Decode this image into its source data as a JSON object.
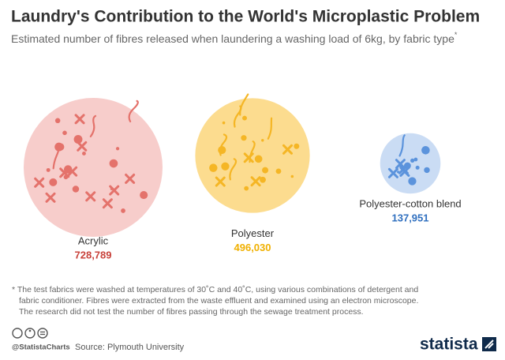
{
  "chart_data": {
    "type": "bubble",
    "title": "Laundry's Contribution to the World's Microplastic Problem",
    "subtitle": "Estimated number of fibres released when laundering a washing load of 6kg, by fabric type",
    "subtitle_mark": "*",
    "categories": [
      "Acrylic",
      "Polyester",
      "Polyester-cotton blend"
    ],
    "values": [
      728789,
      496030,
      137951
    ],
    "value_labels": [
      "728,789",
      "496,030",
      "137,951"
    ],
    "colors": [
      "#f7cdcb",
      "#fcdc8f",
      "#cadcf4"
    ],
    "accent_colors": [
      "#c8413a",
      "#f0b000",
      "#2f6fbf"
    ],
    "mark_colors": [
      "#e4726b",
      "#f5b625",
      "#5b93dc"
    ],
    "footnote": [
      "* The test fabrics were washed at temperatures of 30˚C and 40˚C, using various combinations of detergent and",
      "fabric conditioner. Fibres were extracted from the waste effluent and examined using an electron microscope.",
      "The research did not test the number of fibres passing through the sewage treatment process."
    ],
    "credit": "@StatistaCharts",
    "source": "Source: Plymouth University",
    "logo": "statista"
  }
}
